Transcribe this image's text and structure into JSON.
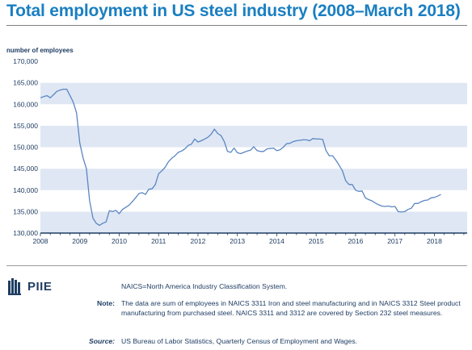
{
  "title": "Total employment in US steel industry (2008–March 2018)",
  "colors": {
    "line": "#5b86c2",
    "band": "#dfe7f4",
    "axis": "#1f3d63",
    "title": "#1a7fc1",
    "brand": "#1f3d63"
  },
  "logo": {
    "text": "PIIE",
    "icon": "piie-columns-icon"
  },
  "footer": {
    "abbreviation": "NAICS=North America Industry Classification System.",
    "note_label": "Note:",
    "note_text": "The data are sum of employees in NAICS 3311 Iron and steel manufacturing and in NAICS 3312 Steel product manufacturing from purchased steel. NAICS 3311 and 3312 are covered by Section 232 steel measures.",
    "source_label": "Source:",
    "source_text": "US Bureau of Labor Statistics, Quarterly Census of Employment and Wages."
  },
  "chart_data": {
    "type": "line",
    "title": "Total employment in US steel industry (2008–March 2018)",
    "ylabel": "number of employees",
    "xlabel": "",
    "xlim": [
      2008.0,
      2018.833
    ],
    "ylim": [
      130000,
      170000
    ],
    "grid": "alternating horizontal bands",
    "yticks": [
      130000,
      135000,
      140000,
      145000,
      150000,
      155000,
      160000,
      165000,
      170000
    ],
    "ytick_labels": [
      "130,000",
      "135,000",
      "140,000",
      "145,000",
      "150,000",
      "155,000",
      "160,000",
      "165,000",
      "170,000"
    ],
    "xticks": [
      2008,
      2009,
      2010,
      2011,
      2012,
      2013,
      2014,
      2015,
      2016,
      2017,
      2018
    ],
    "xtick_labels": [
      "2008",
      "2009",
      "2010",
      "2011",
      "2012",
      "2013",
      "2014",
      "2015",
      "2016",
      "2017",
      "2018"
    ],
    "series": [
      {
        "name": "",
        "x": [
          "2008-01",
          "2008-02",
          "2008-03",
          "2008-04",
          "2008-05",
          "2008-06",
          "2008-07",
          "2008-08",
          "2008-09",
          "2008-10",
          "2008-11",
          "2008-12",
          "2009-01",
          "2009-02",
          "2009-03",
          "2009-04",
          "2009-05",
          "2009-06",
          "2009-07",
          "2009-08",
          "2009-09",
          "2009-10",
          "2009-11",
          "2009-12",
          "2010-01",
          "2010-02",
          "2010-03",
          "2010-04",
          "2010-05",
          "2010-06",
          "2010-07",
          "2010-08",
          "2010-09",
          "2010-10",
          "2010-11",
          "2010-12",
          "2011-01",
          "2011-02",
          "2011-03",
          "2011-04",
          "2011-05",
          "2011-06",
          "2011-07",
          "2011-08",
          "2011-09",
          "2011-10",
          "2011-11",
          "2011-12",
          "2012-01",
          "2012-02",
          "2012-03",
          "2012-04",
          "2012-05",
          "2012-06",
          "2012-07",
          "2012-08",
          "2012-09",
          "2012-10",
          "2012-11",
          "2012-12",
          "2013-01",
          "2013-02",
          "2013-03",
          "2013-04",
          "2013-05",
          "2013-06",
          "2013-07",
          "2013-08",
          "2013-09",
          "2013-10",
          "2013-11",
          "2013-12",
          "2014-01",
          "2014-02",
          "2014-03",
          "2014-04",
          "2014-05",
          "2014-06",
          "2014-07",
          "2014-08",
          "2014-09",
          "2014-10",
          "2014-11",
          "2014-12",
          "2015-01",
          "2015-02",
          "2015-03",
          "2015-04",
          "2015-05",
          "2015-06",
          "2015-07",
          "2015-08",
          "2015-09",
          "2015-10",
          "2015-11",
          "2015-12",
          "2016-01",
          "2016-02",
          "2016-03",
          "2016-04",
          "2016-05",
          "2016-06",
          "2016-07",
          "2016-08",
          "2016-09",
          "2016-10",
          "2016-11",
          "2016-12",
          "2017-01",
          "2017-02",
          "2017-03",
          "2017-04",
          "2017-05",
          "2017-06",
          "2017-07",
          "2017-08",
          "2017-09",
          "2017-10",
          "2017-11",
          "2017-12",
          "2018-01",
          "2018-02",
          "2018-03"
        ],
        "values": [
          161500,
          161800,
          162000,
          161500,
          162200,
          163000,
          163300,
          163500,
          163500,
          162000,
          160500,
          158000,
          151000,
          147500,
          145000,
          137500,
          133500,
          132300,
          131800,
          132300,
          132600,
          135200,
          135000,
          135300,
          134500,
          135500,
          136000,
          136500,
          137300,
          138200,
          139200,
          139400,
          139000,
          140200,
          140300,
          141300,
          143800,
          144500,
          145300,
          146600,
          147400,
          148000,
          148800,
          149100,
          149600,
          150400,
          150700,
          151900,
          151200,
          151500,
          151900,
          152300,
          153000,
          154200,
          153200,
          152700,
          151300,
          149000,
          148800,
          149800,
          148700,
          148500,
          148800,
          149100,
          149300,
          150100,
          149200,
          149000,
          149000,
          149600,
          149700,
          149800,
          149200,
          149400,
          150000,
          150800,
          150900,
          151300,
          151500,
          151600,
          151700,
          151700,
          151500,
          152000,
          151900,
          151900,
          151800,
          149200,
          148000,
          148000,
          147000,
          145800,
          144500,
          142200,
          141300,
          141300,
          140000,
          139700,
          139800,
          138200,
          137800,
          137500,
          137000,
          136600,
          136300,
          136200,
          136300,
          136100,
          136200,
          135000,
          134900,
          135000,
          135500,
          135800,
          136900,
          136900,
          137300,
          137600,
          137700,
          138200,
          138300,
          138600,
          139000
        ]
      }
    ]
  }
}
